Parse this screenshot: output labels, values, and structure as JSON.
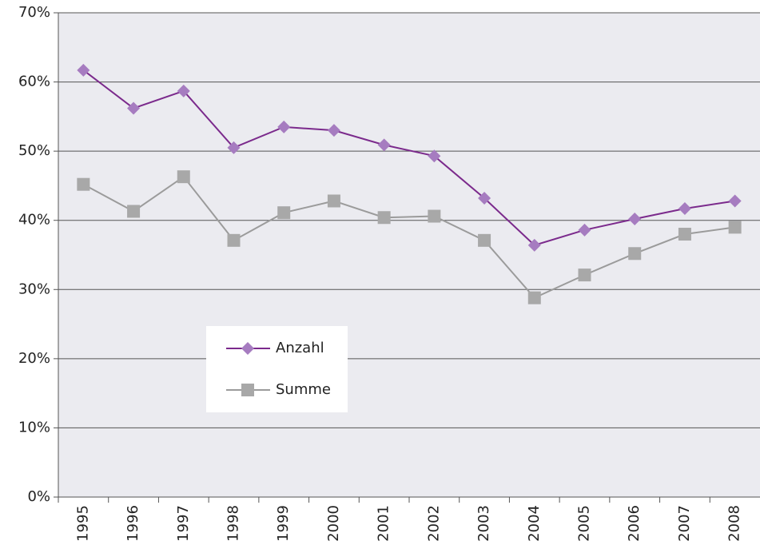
{
  "chart_data": {
    "type": "line",
    "categories": [
      "1995",
      "1996",
      "1997",
      "1998",
      "1999",
      "2000",
      "2001",
      "2002",
      "2003",
      "2004",
      "2005",
      "2006",
      "2007",
      "2008"
    ],
    "series": [
      {
        "name": "Anzahl",
        "color": "#7b2a8c",
        "marker_color": "#a67cc0",
        "marker": "diamond",
        "values": [
          61.7,
          56.2,
          58.7,
          50.5,
          53.5,
          53.0,
          50.9,
          49.3,
          43.2,
          36.4,
          38.6,
          40.2,
          41.7,
          42.8
        ]
      },
      {
        "name": "Summe",
        "color": "#9b9b9b",
        "marker_color": "#a8a8a8",
        "marker": "square",
        "values": [
          45.2,
          41.3,
          46.3,
          37.1,
          41.1,
          42.8,
          40.4,
          40.6,
          37.1,
          28.8,
          32.1,
          35.2,
          38.0,
          39.0
        ]
      }
    ],
    "ylim": [
      0,
      70
    ],
    "yticks": [
      {
        "value": 0,
        "label": "0%"
      },
      {
        "value": 10,
        "label": "10%"
      },
      {
        "value": 20,
        "label": "20%"
      },
      {
        "value": 30,
        "label": "30%"
      },
      {
        "value": 40,
        "label": "40%"
      },
      {
        "value": 50,
        "label": "50%"
      },
      {
        "value": 60,
        "label": "60%"
      },
      {
        "value": 70,
        "label": "70%"
      }
    ],
    "grid": true,
    "background": "#ebebf0"
  }
}
